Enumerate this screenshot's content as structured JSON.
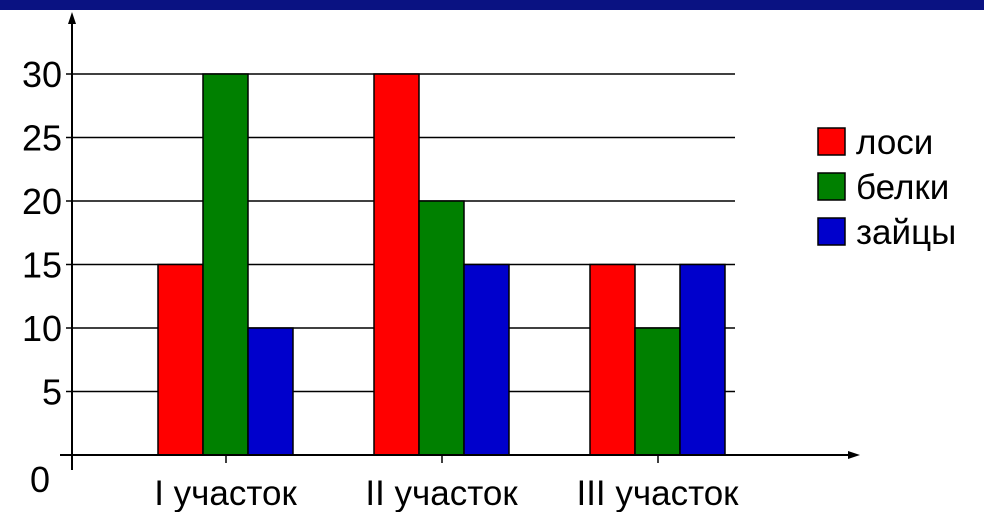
{
  "colors": {
    "top_bar": "#0a1282",
    "loci": "#ff0000",
    "belki": "#008000",
    "zaytsy": "#0000cc",
    "axis": "#000000",
    "grid": "#000000"
  },
  "chart_data": {
    "type": "bar",
    "categories": [
      "I участок",
      "II участок",
      "III участок"
    ],
    "series": [
      {
        "name": "лоси",
        "values": [
          15,
          30,
          15
        ]
      },
      {
        "name": "белки",
        "values": [
          30,
          20,
          10
        ]
      },
      {
        "name": "зайцы",
        "values": [
          10,
          15,
          15
        ]
      }
    ],
    "yticks": [
      "0",
      "5",
      "10",
      "15",
      "20",
      "25",
      "30"
    ],
    "ylim": [
      0,
      33
    ],
    "grid": true,
    "legend_position": "right",
    "title": "",
    "xlabel": "",
    "ylabel": ""
  }
}
